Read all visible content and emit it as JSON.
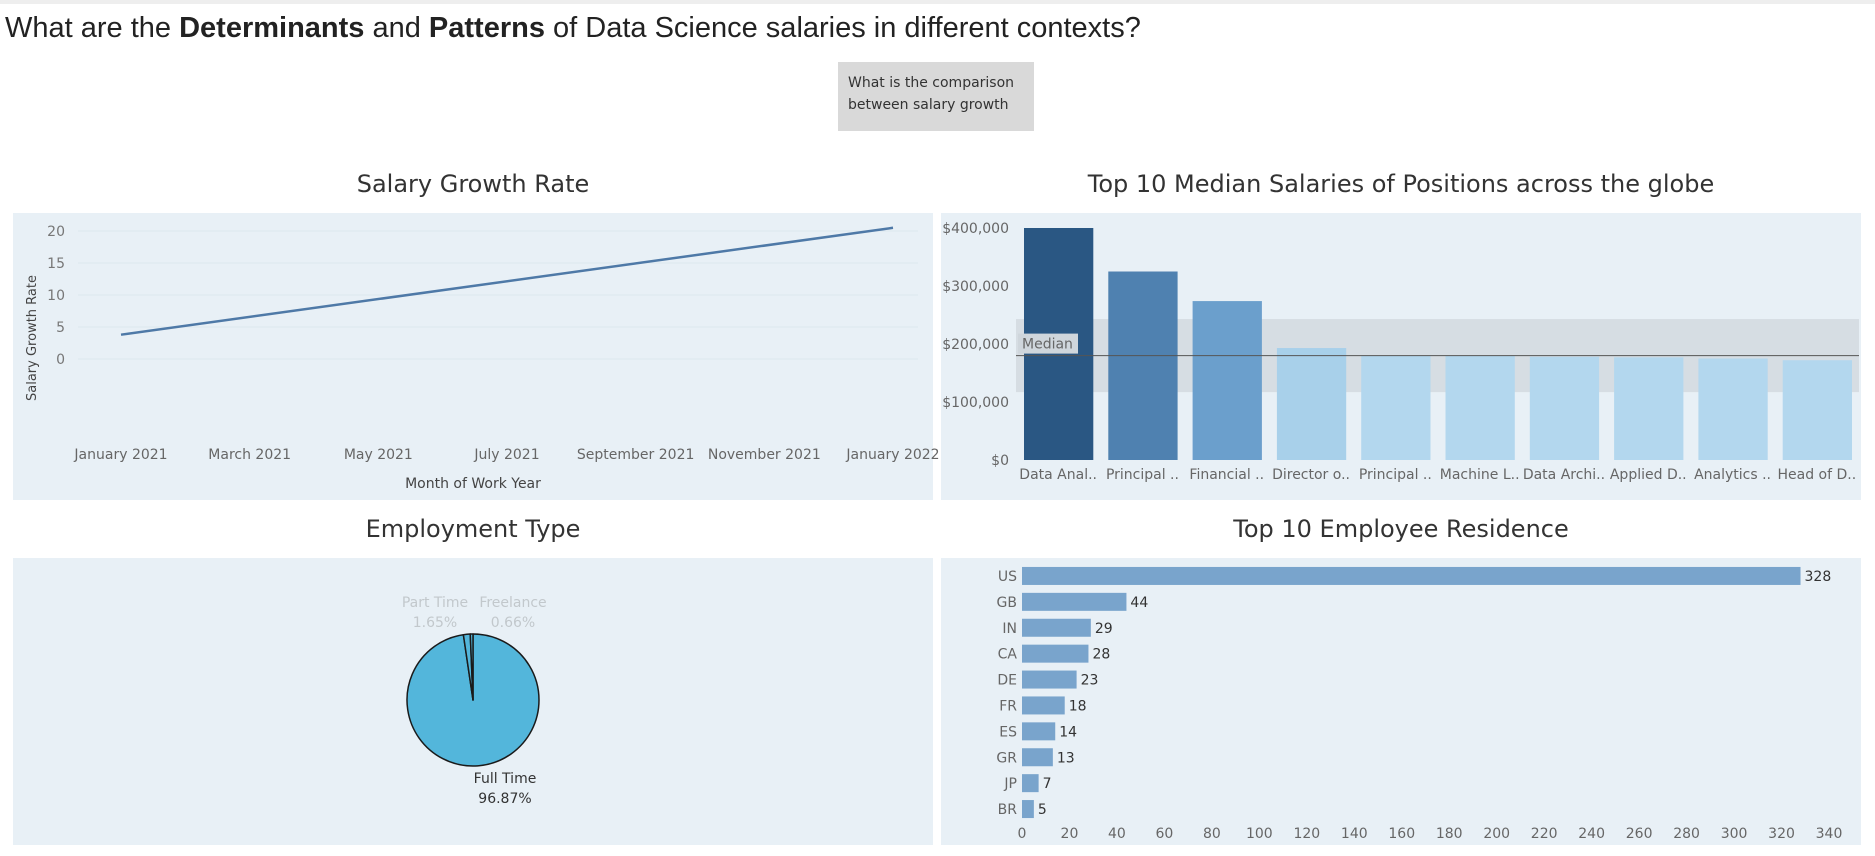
{
  "title": {
    "part1": "What are the ",
    "bold1": "Determinants",
    "part2": " and ",
    "bold2": "Patterns",
    "part3": " of Data Science salaries in different contexts?"
  },
  "tooltip": {
    "text": "What is the comparison between salary growth"
  },
  "chart_data": [
    {
      "type": "line",
      "title": "Salary Growth Rate",
      "xlabel": "Month of Work Year",
      "ylabel": "Salary Growth Rate",
      "x_ticks": [
        "January 2021",
        "March 2021",
        "May 2021",
        "July 2021",
        "September 2021",
        "November 2021",
        "January 2022"
      ],
      "y_ticks": [
        "0",
        "5",
        "10",
        "15",
        "20"
      ],
      "ylim": [
        0,
        20
      ],
      "series": [
        {
          "x": [
            "2021-01",
            "2022-01"
          ],
          "y": [
            3.8,
            20.5
          ]
        }
      ],
      "color": "#4e79a7"
    },
    {
      "type": "bar",
      "title": "Top 10 Median Salaries of Positions across the globe",
      "categories": [
        "Data Anal..",
        "Principal ..",
        "Financial ..",
        "Director o..",
        "Principal ..",
        "Machine L..",
        "Data Archi..",
        "Applied D..",
        "Analytics ..",
        "Head of D.."
      ],
      "values": [
        400000,
        325000,
        274000,
        193000,
        180000,
        180000,
        178000,
        177000,
        175000,
        172000
      ],
      "y_ticks": [
        "$0",
        "$100,000",
        "$200,000",
        "$300,000",
        "$400,000"
      ],
      "ylim": [
        0,
        400000
      ],
      "reference_line": {
        "label": "Median",
        "value": 180000
      },
      "reference_band": [
        117000,
        243000
      ],
      "colors": [
        "#2a5783",
        "#4f81b0",
        "#6b9fcc",
        "#a8d0ea",
        "#b3d7ee",
        "#b3d7ee",
        "#b3d7ee",
        "#b3d7ee",
        "#b3d7ee",
        "#b3d7ee"
      ]
    },
    {
      "type": "pie",
      "title": "Employment Type",
      "slices": [
        {
          "label": "Full Time",
          "value": 96.87,
          "text": "96.87%",
          "color": "#53b6db"
        },
        {
          "label": "Part Time",
          "value": 1.65,
          "text": "1.65%",
          "color": "#53b6db"
        },
        {
          "label": "Freelance",
          "value": 0.66,
          "text": "0.66%",
          "color": "#53b6db"
        }
      ]
    },
    {
      "type": "bar",
      "orientation": "horizontal",
      "title": "Top 10 Employee Residence",
      "categories": [
        "US",
        "GB",
        "IN",
        "CA",
        "DE",
        "FR",
        "ES",
        "GR",
        "JP",
        "BR"
      ],
      "values": [
        328,
        44,
        29,
        28,
        23,
        18,
        14,
        13,
        7,
        5
      ],
      "x_ticks": [
        "0",
        "20",
        "40",
        "60",
        "80",
        "100",
        "120",
        "140",
        "160",
        "180",
        "200",
        "220",
        "240",
        "260",
        "280",
        "300",
        "320",
        "340"
      ],
      "xlim": [
        0,
        340
      ],
      "color": "#79a4cc"
    }
  ]
}
